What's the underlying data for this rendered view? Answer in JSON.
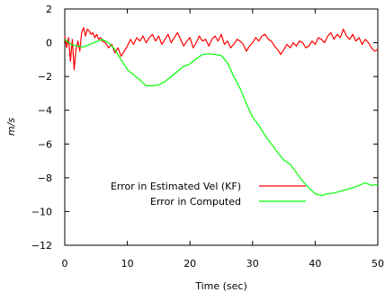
{
  "chart_data": {
    "type": "line",
    "title": "",
    "xlabel": "Time (sec)",
    "ylabel": "m/s",
    "xlim": [
      0,
      50
    ],
    "ylim": [
      -12,
      2
    ],
    "xticks": [
      0,
      10,
      20,
      30,
      40,
      50
    ],
    "yticks": [
      2,
      0,
      -2,
      -4,
      -6,
      -8,
      -10,
      -12
    ],
    "grid": false,
    "legend_position": "lower-right",
    "series": [
      {
        "name": "Error in Estimated Vel (KF)",
        "color": "#ff0000",
        "x": [
          0,
          0.3,
          0.6,
          0.9,
          1.2,
          1.5,
          1.8,
          2.1,
          2.4,
          2.7,
          3.0,
          3.3,
          3.6,
          3.9,
          4.2,
          4.5,
          4.8,
          5.1,
          5.4,
          5.7,
          6.0,
          6.5,
          7.0,
          7.5,
          8.0,
          8.5,
          9.0,
          9.5,
          10.0,
          10.5,
          11.0,
          11.5,
          12.0,
          12.5,
          13.0,
          13.5,
          14.0,
          14.5,
          15.0,
          15.5,
          16.0,
          16.5,
          17.0,
          17.5,
          18.0,
          18.5,
          19.0,
          19.5,
          20.0,
          20.5,
          21.0,
          21.5,
          22.0,
          22.5,
          23.0,
          23.5,
          24.0,
          24.5,
          25.0,
          25.5,
          26.0,
          26.5,
          27.0,
          27.5,
          28.0,
          28.5,
          29.0,
          29.5,
          30.0,
          30.5,
          31.0,
          31.5,
          32.0,
          32.5,
          33.0,
          33.5,
          34.0,
          34.5,
          35.0,
          35.5,
          36.0,
          36.5,
          37.0,
          37.5,
          38.0,
          38.5,
          39.0,
          39.5,
          40.0,
          40.5,
          41.0,
          41.5,
          42.0,
          42.5,
          43.0,
          43.5,
          44.0,
          44.5,
          45.0,
          45.5,
          46.0,
          46.5,
          47.0,
          47.5,
          48.0,
          48.5,
          49.0,
          49.5,
          50.0
        ],
        "y": [
          0.4,
          -0.3,
          0.3,
          -1.1,
          0.2,
          -1.6,
          -0.4,
          0.1,
          -0.5,
          0.6,
          0.9,
          0.4,
          0.8,
          0.7,
          0.5,
          0.6,
          0.3,
          0.5,
          0.2,
          0.3,
          0.1,
          0.0,
          -0.3,
          -0.1,
          -0.6,
          -0.3,
          -0.8,
          -0.5,
          -0.2,
          0.2,
          -0.1,
          0.3,
          0.1,
          0.4,
          0.0,
          0.3,
          0.5,
          0.1,
          0.4,
          -0.1,
          0.2,
          0.5,
          0.0,
          0.3,
          0.6,
          0.2,
          -0.2,
          0.1,
          0.3,
          -0.3,
          0.0,
          0.4,
          0.1,
          0.2,
          -0.2,
          0.2,
          0.4,
          0.1,
          0.5,
          -0.1,
          0.1,
          -0.3,
          -0.1,
          0.2,
          0.1,
          -0.1,
          -0.5,
          -0.2,
          0.0,
          0.3,
          0.1,
          0.4,
          0.5,
          0.2,
          0.1,
          -0.2,
          -0.4,
          -0.7,
          -0.4,
          -0.1,
          -0.3,
          0.0,
          -0.2,
          0.1,
          0.0,
          -0.3,
          -0.2,
          0.1,
          -0.1,
          0.3,
          0.2,
          0.0,
          0.4,
          0.6,
          0.2,
          0.5,
          0.3,
          0.8,
          0.4,
          0.2,
          0.5,
          0.1,
          0.3,
          -0.1,
          0.2,
          0.0,
          -0.3,
          -0.5,
          -0.4
        ]
      },
      {
        "name": "Error in Computed",
        "color": "#00ff00",
        "x": [
          0,
          1,
          2,
          3,
          4,
          5,
          6,
          7,
          8,
          9,
          10,
          11,
          12,
          13,
          14,
          15,
          16,
          17,
          18,
          19,
          20,
          21,
          22,
          23,
          24,
          25,
          26,
          27,
          28,
          29,
          30,
          31,
          32,
          33,
          34,
          35,
          36,
          37,
          38,
          39,
          40,
          41,
          42,
          43,
          44,
          45,
          46,
          47,
          48,
          49,
          50
        ],
        "y": [
          0.2,
          -0.1,
          -0.2,
          -0.25,
          -0.1,
          0.05,
          0.2,
          0.0,
          -0.4,
          -1.0,
          -1.6,
          -1.9,
          -2.2,
          -2.55,
          -2.55,
          -2.5,
          -2.3,
          -2.0,
          -1.7,
          -1.4,
          -1.25,
          -0.95,
          -0.7,
          -0.65,
          -0.7,
          -0.75,
          -1.2,
          -2.0,
          -2.7,
          -3.6,
          -4.4,
          -4.9,
          -5.5,
          -6.0,
          -6.5,
          -6.95,
          -7.2,
          -7.7,
          -8.2,
          -8.6,
          -8.95,
          -9.05,
          -8.95,
          -8.9,
          -8.8,
          -8.7,
          -8.6,
          -8.45,
          -8.3,
          -8.45,
          -8.4
        ]
      }
    ]
  }
}
